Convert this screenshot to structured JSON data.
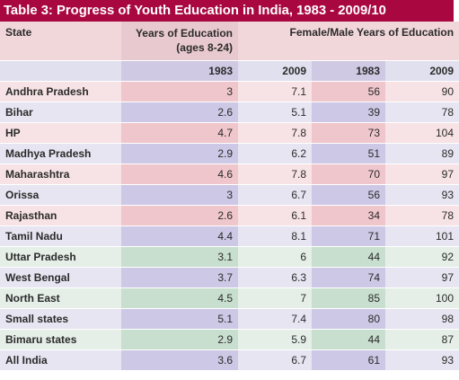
{
  "title": "Table 3: Progress of Youth Education in India, 1983 - 2009/10",
  "headers": {
    "state": "State",
    "years_edu_line1": "Years of Education",
    "years_edu_line2": "(ages 8-24)",
    "fm_years": "Female/Male Years of Education",
    "y1": "1983",
    "y2": "2009",
    "y3": "1983",
    "y4": "2009"
  },
  "rows": [
    {
      "state": "Andhra Pradesh",
      "e1983": "3",
      "e2009": "7.1",
      "f1983": "56",
      "f2009": "90"
    },
    {
      "state": "Bihar",
      "e1983": "2.6",
      "e2009": "5.1",
      "f1983": "39",
      "f2009": "78"
    },
    {
      "state": "HP",
      "e1983": "4.7",
      "e2009": "7.8",
      "f1983": "73",
      "f2009": "104"
    },
    {
      "state": "Madhya Pradesh",
      "e1983": "2.9",
      "e2009": "6.2",
      "f1983": "51",
      "f2009": "89"
    },
    {
      "state": "Maharashtra",
      "e1983": "4.6",
      "e2009": "7.8",
      "f1983": "70",
      "f2009": "97"
    },
    {
      "state": "Orissa",
      "e1983": "3",
      "e2009": "6.7",
      "f1983": "56",
      "f2009": "93"
    },
    {
      "state": "Rajasthan",
      "e1983": "2.6",
      "e2009": "6.1",
      "f1983": "34",
      "f2009": "78"
    },
    {
      "state": "Tamil Nadu",
      "e1983": "4.4",
      "e2009": "8.1",
      "f1983": "71",
      "f2009": "101"
    },
    {
      "state": "Uttar Pradesh",
      "e1983": "3.1",
      "e2009": "6",
      "f1983": "44",
      "f2009": "92"
    },
    {
      "state": "West Bengal",
      "e1983": "3.7",
      "e2009": "6.3",
      "f1983": "74",
      "f2009": "97"
    },
    {
      "state": "North East",
      "e1983": "4.5",
      "e2009": "7",
      "f1983": "85",
      "f2009": "100"
    },
    {
      "state": "Small states",
      "e1983": "5.1",
      "e2009": "7.4",
      "f1983": "80",
      "f2009": "98"
    },
    {
      "state": "Bimaru states",
      "e1983": "2.9",
      "e2009": "5.9",
      "f1983": "44",
      "f2009": "87"
    },
    {
      "state": "All India",
      "e1983": "3.6",
      "e2009": "6.7",
      "f1983": "61",
      "f2009": "93"
    }
  ],
  "colors": {
    "title_bg": "#a8083f",
    "pink_row": "#f7e3e5",
    "lavender_row": "#e6e5f1",
    "green_row": "#e5efe8"
  }
}
